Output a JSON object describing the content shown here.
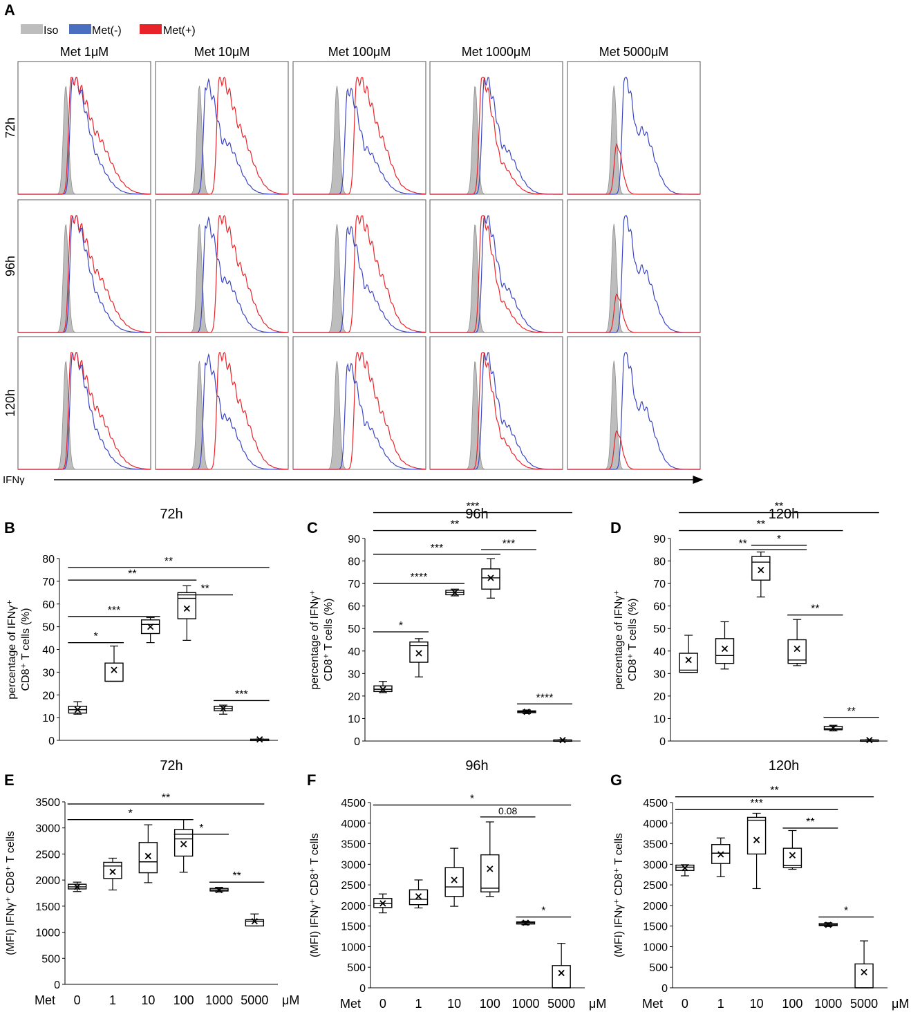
{
  "colors": {
    "iso": "#bdbdbd",
    "iso_stroke": "#8e8e8e",
    "met_minus": "#3b45c3",
    "met_plus": "#e8242a",
    "legend_minus": "#4a6fc1",
    "legend_plus": "#e8242a"
  },
  "panel_a": {
    "label": "A",
    "legend": [
      {
        "key": "iso",
        "label": "Iso"
      },
      {
        "key": "minus",
        "label": "Met(-)"
      },
      {
        "key": "plus",
        "label": "Met(+)"
      }
    ],
    "columns": [
      "Met 1μM",
      "Met 10μM",
      "Met 100μM",
      "Met 1000μM",
      "Met 5000μM"
    ],
    "rows": [
      "72h",
      "96h",
      "120h"
    ],
    "xaxis_label": "IFNγ"
  },
  "chart_data": [
    {
      "panel": "B",
      "type": "box",
      "title": "72h",
      "ylabel_line1": "percentage of IFNγ⁺",
      "ylabel_line2": "CD8⁺ T cells (%)",
      "ylim": [
        0,
        80
      ],
      "yticks": [
        0,
        10,
        20,
        30,
        40,
        50,
        60,
        70,
        80
      ],
      "categories": [
        "0",
        "1",
        "10",
        "100",
        "1000",
        "5000"
      ],
      "boxes": [
        {
          "min": 11.5,
          "q1": 12,
          "median": 13.5,
          "q3": 15,
          "max": 17,
          "mean": 13.5
        },
        {
          "min": 26,
          "q1": 26,
          "median": 26,
          "q3": 34,
          "max": 41.5,
          "mean": 31
        },
        {
          "min": 43,
          "q1": 47,
          "median": 51,
          "q3": 53,
          "max": 54,
          "mean": 50
        },
        {
          "min": 44,
          "q1": 53.5,
          "median": 62.5,
          "q3": 65,
          "max": 68,
          "mean": 58
        },
        {
          "min": 11.5,
          "q1": 13,
          "median": 14,
          "q3": 15,
          "max": 15.5,
          "mean": 14
        },
        {
          "min": 0.2,
          "q1": 0.3,
          "median": 0.4,
          "q3": 0.5,
          "max": 0.6,
          "mean": 0.4
        }
      ],
      "brackets": [
        {
          "from": 0,
          "to": 5,
          "y": 76,
          "label": "**"
        },
        {
          "from": 0,
          "to": 3,
          "y": 70.5,
          "label": "**"
        },
        {
          "from": 3,
          "to": 4,
          "y": 64,
          "label": "**"
        },
        {
          "from": 0,
          "to": 2,
          "y": 54.5,
          "label": "***"
        },
        {
          "from": 0,
          "to": 1,
          "y": 43,
          "label": "*"
        },
        {
          "from": 4,
          "to": 5,
          "y": 17.5,
          "label": "***"
        }
      ]
    },
    {
      "panel": "C",
      "type": "box",
      "title": "96h",
      "ylabel_line1": "percentage of IFNγ⁺",
      "ylabel_line2": "CD8⁺ T cells (%)",
      "ylim": [
        0,
        90
      ],
      "yticks": [
        0,
        10,
        20,
        30,
        40,
        50,
        60,
        70,
        80,
        90
      ],
      "categories": [
        "0",
        "1",
        "10",
        "100",
        "1000",
        "5000"
      ],
      "boxes": [
        {
          "min": 21.5,
          "q1": 22,
          "median": 23,
          "q3": 24.5,
          "max": 26.5,
          "mean": 23
        },
        {
          "min": 28.5,
          "q1": 35,
          "median": 42.5,
          "q3": 44,
          "max": 45.5,
          "mean": 39
        },
        {
          "min": 64.5,
          "q1": 65,
          "median": 66,
          "q3": 67,
          "max": 67.5,
          "mean": 66
        },
        {
          "min": 63.5,
          "q1": 67.5,
          "median": 72.5,
          "q3": 76.5,
          "max": 81,
          "mean": 72.5
        },
        {
          "min": 12.2,
          "q1": 12.6,
          "median": 13,
          "q3": 13.4,
          "max": 13.8,
          "mean": 13
        },
        {
          "min": 0.2,
          "q1": 0.3,
          "median": 0.4,
          "q3": 0.5,
          "max": 0.6,
          "mean": 0.4
        }
      ],
      "brackets": [
        {
          "from": 0,
          "to": 5,
          "y": 101.5,
          "label": "***"
        },
        {
          "from": 0,
          "to": 4,
          "y": 93.5,
          "label": "**"
        },
        {
          "from": 3,
          "to": 4,
          "y": 85,
          "label": "***"
        },
        {
          "from": 0,
          "to": 3,
          "y": 83,
          "label": "***"
        },
        {
          "from": 0,
          "to": 2,
          "y": 70,
          "label": "****"
        },
        {
          "from": 0,
          "to": 1,
          "y": 48.5,
          "label": "*"
        },
        {
          "from": 4,
          "to": 5,
          "y": 16.5,
          "label": "****"
        }
      ]
    },
    {
      "panel": "D",
      "type": "box",
      "title": "120h",
      "ylabel_line1": "percentage of IFNγ⁺",
      "ylabel_line2": "CD8⁺ T cells (%)",
      "ylim": [
        0,
        90
      ],
      "yticks": [
        0,
        10,
        20,
        30,
        40,
        50,
        60,
        70,
        80,
        90
      ],
      "categories": [
        "0",
        "1",
        "10",
        "100",
        "1000",
        "5000"
      ],
      "boxes": [
        {
          "min": 30.5,
          "q1": 30.5,
          "median": 31.5,
          "q3": 39,
          "max": 47,
          "mean": 36
        },
        {
          "min": 32,
          "q1": 34.5,
          "median": 38,
          "q3": 45.5,
          "max": 53,
          "mean": 41
        },
        {
          "min": 64,
          "q1": 71.5,
          "median": 79.5,
          "q3": 82,
          "max": 84,
          "mean": 76
        },
        {
          "min": 33.5,
          "q1": 34.5,
          "median": 36,
          "q3": 45,
          "max": 54,
          "mean": 41
        },
        {
          "min": 4.5,
          "q1": 5,
          "median": 5.5,
          "q3": 6.5,
          "max": 7,
          "mean": 5.8
        },
        {
          "min": 0.2,
          "q1": 0.3,
          "median": 0.4,
          "q3": 0.5,
          "max": 0.6,
          "mean": 0.4
        }
      ],
      "brackets": [
        {
          "from": 0,
          "to": 5,
          "y": 101.5,
          "label": "**"
        },
        {
          "from": 0,
          "to": 4,
          "y": 93.5,
          "label": "**"
        },
        {
          "from": 0,
          "to": 3,
          "y": 85,
          "label": "**"
        },
        {
          "from": 2,
          "to": 3,
          "y": 87,
          "label": "*"
        },
        {
          "from": 3,
          "to": 4,
          "y": 56,
          "label": "**"
        },
        {
          "from": 4,
          "to": 5,
          "y": 10.5,
          "label": "**"
        }
      ]
    },
    {
      "panel": "E",
      "type": "box",
      "title": "72h",
      "ylabel_line1": "(MFI) IFNγ⁺ CD8⁺ T cells",
      "ylim": [
        0,
        3500
      ],
      "yticks": [
        0,
        500,
        1000,
        1500,
        2000,
        2500,
        3000,
        3500
      ],
      "categories": [
        "0",
        "1",
        "10",
        "100",
        "1000",
        "5000"
      ],
      "boxes": [
        {
          "min": 1780,
          "q1": 1830,
          "median": 1870,
          "q3": 1920,
          "max": 1960,
          "mean": 1870
        },
        {
          "min": 1810,
          "q1": 2030,
          "median": 2270,
          "q3": 2340,
          "max": 2420,
          "mean": 2160
        },
        {
          "min": 1950,
          "q1": 2140,
          "median": 2350,
          "q3": 2720,
          "max": 3060,
          "mean": 2460
        },
        {
          "min": 2150,
          "q1": 2460,
          "median": 2790,
          "q3": 2970,
          "max": 3160,
          "mean": 2690
        },
        {
          "min": 1770,
          "q1": 1790,
          "median": 1810,
          "q3": 1840,
          "max": 1860,
          "mean": 1810
        },
        {
          "min": 1120,
          "q1": 1120,
          "median": 1210,
          "q3": 1240,
          "max": 1350,
          "mean": 1210
        }
      ],
      "brackets": [
        {
          "from": 0,
          "to": 5,
          "y": 3460,
          "label": "**"
        },
        {
          "from": 0,
          "to": 3,
          "y": 3160,
          "label": "*"
        },
        {
          "from": 3,
          "to": 4,
          "y": 2880,
          "label": "*"
        },
        {
          "from": 4,
          "to": 5,
          "y": 1960,
          "label": "**"
        }
      ]
    },
    {
      "panel": "F",
      "type": "box",
      "title": "96h",
      "ylabel_line1": "(MFI) IFNγ⁺ CD8⁺ T cells",
      "ylim": [
        0,
        4500
      ],
      "yticks": [
        0,
        500,
        1000,
        1500,
        2000,
        2500,
        3000,
        3500,
        4000,
        4500
      ],
      "categories": [
        "0",
        "1",
        "10",
        "100",
        "1000",
        "5000"
      ],
      "boxes": [
        {
          "min": 1820,
          "q1": 1950,
          "median": 2050,
          "q3": 2170,
          "max": 2280,
          "mean": 2050
        },
        {
          "min": 1940,
          "q1": 2020,
          "median": 2150,
          "q3": 2380,
          "max": 2620,
          "mean": 2220
        },
        {
          "min": 1980,
          "q1": 2220,
          "median": 2450,
          "q3": 2920,
          "max": 3390,
          "mean": 2620
        },
        {
          "min": 2220,
          "q1": 2330,
          "median": 2420,
          "q3": 3230,
          "max": 4030,
          "mean": 2890
        },
        {
          "min": 1530,
          "q1": 1550,
          "median": 1580,
          "q3": 1600,
          "max": 1620,
          "mean": 1580
        },
        {
          "min": 0,
          "q1": 0,
          "median": 0,
          "q3": 540,
          "max": 1080,
          "mean": 360
        }
      ],
      "brackets": [
        {
          "from": 0,
          "to": 5,
          "y": 4440,
          "label": "*"
        },
        {
          "from": 3,
          "to": 4,
          "y": 4150,
          "label": "0.08"
        },
        {
          "from": 4,
          "to": 5,
          "y": 1720,
          "label": "*"
        }
      ]
    },
    {
      "panel": "G",
      "type": "box",
      "title": "120h",
      "ylabel_line1": "(MFI) IFNγ⁺ CD8⁺ T cells",
      "ylim": [
        0,
        4500
      ],
      "yticks": [
        0,
        500,
        1000,
        1500,
        2000,
        2500,
        3000,
        3500,
        4000,
        4500
      ],
      "categories": [
        "0",
        "1",
        "10",
        "100",
        "1000",
        "5000"
      ],
      "boxes": [
        {
          "min": 2720,
          "q1": 2850,
          "median": 2930,
          "q3": 2980,
          "max": 2990,
          "mean": 2910
        },
        {
          "min": 2700,
          "q1": 3020,
          "median": 3270,
          "q3": 3480,
          "max": 3640,
          "mean": 3240
        },
        {
          "min": 2410,
          "q1": 3250,
          "median": 4070,
          "q3": 4140,
          "max": 4240,
          "mean": 3590
        },
        {
          "min": 2880,
          "q1": 2920,
          "median": 2970,
          "q3": 3390,
          "max": 3820,
          "mean": 3220
        },
        {
          "min": 1490,
          "q1": 1510,
          "median": 1530,
          "q3": 1560,
          "max": 1580,
          "mean": 1530
        },
        {
          "min": 0,
          "q1": 0,
          "median": 0,
          "q3": 580,
          "max": 1140,
          "mean": 380
        }
      ],
      "brackets": [
        {
          "from": 0,
          "to": 5,
          "y": 4640,
          "label": "**"
        },
        {
          "from": 0,
          "to": 4,
          "y": 4330,
          "label": "***"
        },
        {
          "from": 3,
          "to": 4,
          "y": 3880,
          "label": "**"
        },
        {
          "from": 4,
          "to": 5,
          "y": 1720,
          "label": "*"
        }
      ]
    }
  ],
  "box_xaxis": {
    "prefix": "Met",
    "unit": "μM"
  }
}
